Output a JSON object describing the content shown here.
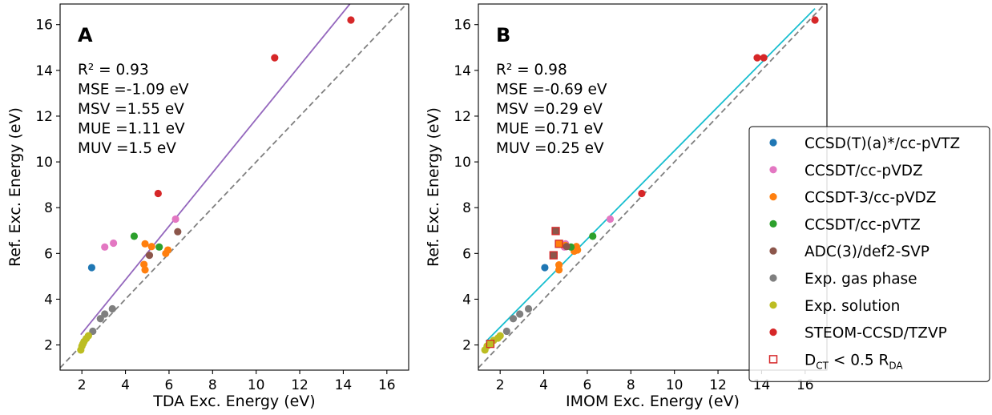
{
  "chart_data": [
    {
      "type": "scatter",
      "panel_label": "A",
      "xlabel": "TDA Exc. Energy (eV)",
      "ylabel": "Ref. Exc. Energy (eV)",
      "xlim": [
        1.0,
        17.0
      ],
      "ylim": [
        0.9,
        16.9
      ],
      "xticks": [
        2,
        4,
        6,
        8,
        10,
        12,
        14,
        16
      ],
      "yticks": [
        2,
        4,
        6,
        8,
        10,
        12,
        14,
        16
      ],
      "stats": [
        "R² = 0.93",
        "MSE =-1.09 eV",
        "MSV =1.55 eV",
        "MUE =1.11 eV",
        "MUV =1.5 eV"
      ],
      "fit_line": {
        "color": "#9467bd",
        "x": [
          1.95,
          14.3
        ],
        "y": [
          2.45,
          16.9
        ]
      },
      "diagonal": true,
      "series": [
        {
          "name": "CCSD(T)(a)*/cc-pVTZ",
          "color": "#1f77b4",
          "x": [
            2.45
          ],
          "y": [
            5.38
          ]
        },
        {
          "name": "CCSDT/cc-pVDZ",
          "color": "#e377c2",
          "x": [
            3.05,
            3.45,
            6.3
          ],
          "y": [
            6.28,
            6.45,
            7.5
          ]
        },
        {
          "name": "CCSDT-3/cc-pVDZ",
          "color": "#ff7f0e",
          "x": [
            4.9,
            4.85,
            4.9,
            5.2,
            5.85,
            5.95
          ],
          "y": [
            6.42,
            5.52,
            5.28,
            6.3,
            6.0,
            6.15
          ]
        },
        {
          "name": "CCSDT/cc-pVTZ",
          "color": "#2ca02c",
          "x": [
            4.4,
            5.55
          ],
          "y": [
            6.75,
            6.28
          ]
        },
        {
          "name": "ADC(3)/def2-SVP",
          "color": "#8c564b",
          "x": [
            5.1,
            6.4
          ],
          "y": [
            5.92,
            6.95
          ]
        },
        {
          "name": "Exp. gas phase",
          "color": "#7f7f7f",
          "x": [
            2.5,
            2.85,
            3.05,
            3.4
          ],
          "y": [
            2.6,
            3.15,
            3.35,
            3.58
          ]
        },
        {
          "name": "Exp. solution",
          "color": "#bcbd22",
          "x": [
            1.95,
            2.0,
            2.05,
            2.1,
            2.2,
            2.3
          ],
          "y": [
            1.78,
            1.95,
            2.05,
            2.15,
            2.28,
            2.4
          ]
        },
        {
          "name": "STEOM-CCSD/TZVP",
          "color": "#d62728",
          "x": [
            5.5,
            10.85,
            14.35
          ],
          "y": [
            8.62,
            14.55,
            16.2
          ]
        }
      ],
      "ct_markers": []
    },
    {
      "type": "scatter",
      "panel_label": "B",
      "xlabel": "IMOM Exc. Energy (eV)",
      "ylabel": "Ref. Exc. Energy (eV)",
      "xlim": [
        1.0,
        17.0
      ],
      "ylim": [
        0.9,
        16.9
      ],
      "xticks": [
        2,
        4,
        6,
        8,
        10,
        12,
        14,
        16
      ],
      "yticks": [
        2,
        4,
        6,
        8,
        10,
        12,
        14,
        16
      ],
      "stats": [
        "R² = 0.98",
        "MSE =-0.69 eV",
        "MSV =0.29 eV",
        "MUE =0.71 eV",
        "MUV =0.25 eV"
      ],
      "fit_line": {
        "color": "#17becf",
        "x": [
          1.35,
          16.45
        ],
        "y": [
          2.15,
          16.7
        ]
      },
      "diagonal": true,
      "series": [
        {
          "name": "CCSD(T)(a)*/cc-pVTZ",
          "color": "#1f77b4",
          "x": [
            4.05
          ],
          "y": [
            5.38
          ]
        },
        {
          "name": "CCSDT/cc-pVDZ",
          "color": "#e377c2",
          "x": [
            4.95,
            5.0,
            7.05
          ],
          "y": [
            6.28,
            6.42,
            7.5
          ]
        },
        {
          "name": "CCSDT-3/cc-pVDZ",
          "color": "#ff7f0e",
          "x": [
            4.7,
            4.7,
            5.0,
            5.4,
            5.55,
            5.5
          ],
          "y": [
            5.5,
            5.28,
            6.35,
            6.1,
            6.15,
            6.3
          ]
        },
        {
          "name": "CCSDT/cc-pVTZ",
          "color": "#2ca02c",
          "x": [
            5.25,
            6.25
          ],
          "y": [
            6.28,
            6.75
          ]
        },
        {
          "name": "ADC(3)/def2-SVP",
          "color": "#8c564b",
          "x": [
            5.05
          ],
          "y": [
            6.3
          ]
        },
        {
          "name": "Exp. gas phase",
          "color": "#7f7f7f",
          "x": [
            2.3,
            2.6,
            2.9,
            3.3
          ],
          "y": [
            2.6,
            3.15,
            3.35,
            3.58
          ]
        },
        {
          "name": "Exp. solution",
          "color": "#bcbd22",
          "x": [
            1.3,
            1.4,
            1.5,
            1.7,
            1.9,
            2.0
          ],
          "y": [
            1.78,
            1.95,
            2.05,
            2.2,
            2.3,
            2.4
          ]
        },
        {
          "name": "STEOM-CCSD/TZVP",
          "color": "#d62728",
          "x": [
            8.5,
            13.8,
            14.1,
            16.45
          ],
          "y": [
            8.62,
            14.55,
            14.55,
            16.2
          ]
        }
      ],
      "ct_markers": [
        {
          "x": 4.55,
          "y": 6.98,
          "color": "#8c564b"
        },
        {
          "x": 4.45,
          "y": 5.92,
          "color": "#8c564b"
        },
        {
          "x": 4.7,
          "y": 6.42,
          "color": "#ff7f0e"
        },
        {
          "x": 1.55,
          "y": 2.05,
          "color": "#bcbd22"
        }
      ]
    }
  ],
  "legend": {
    "placement": "right of panel B, middle",
    "entries": [
      {
        "label": "CCSD(T)(a)*/cc-pVTZ",
        "color": "#1f77b4",
        "marker": "circle"
      },
      {
        "label": "CCSDT/cc-pVDZ",
        "color": "#e377c2",
        "marker": "circle"
      },
      {
        "label": "CCSDT-3/cc-pVDZ",
        "color": "#ff7f0e",
        "marker": "circle"
      },
      {
        "label": "CCSDT/cc-pVTZ",
        "color": "#2ca02c",
        "marker": "circle"
      },
      {
        "label": "ADC(3)/def2-SVP",
        "color": "#8c564b",
        "marker": "circle"
      },
      {
        "label": "Exp. gas phase",
        "color": "#7f7f7f",
        "marker": "circle"
      },
      {
        "label": "Exp. solution",
        "color": "#bcbd22",
        "marker": "circle"
      },
      {
        "label": "STEOM-CCSD/TZVP",
        "color": "#d62728",
        "marker": "circle"
      },
      {
        "label_parts": [
          "D",
          "CT",
          " < 0.5 R",
          "DA"
        ],
        "color": "#d62728",
        "marker": "open-square"
      }
    ]
  }
}
